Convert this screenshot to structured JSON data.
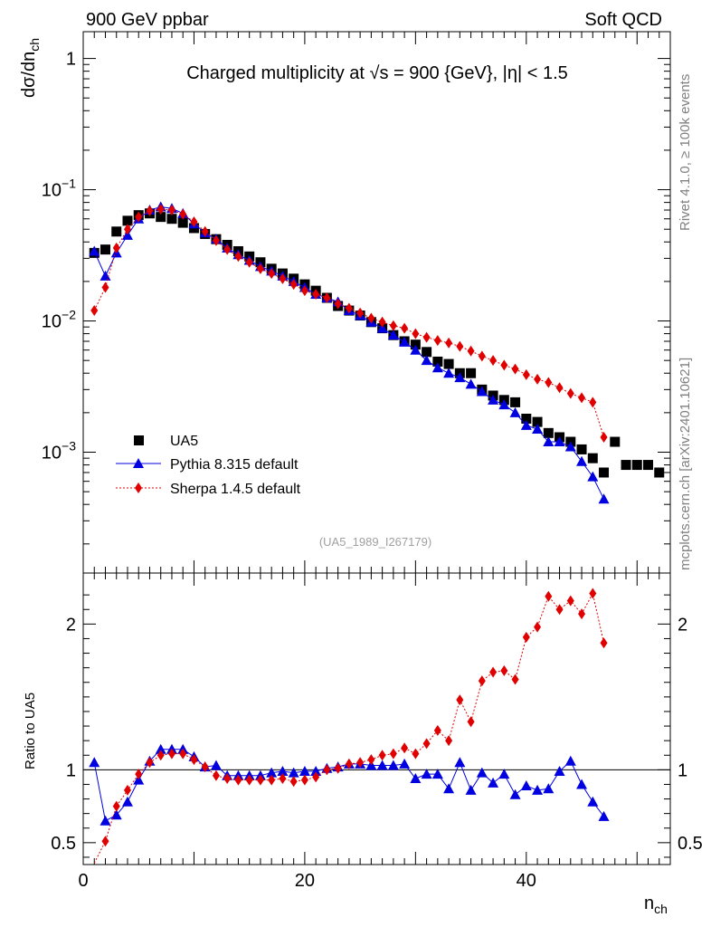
{
  "header": {
    "left": "900 GeV ppbar",
    "right": "Soft QCD"
  },
  "side_labels": {
    "rivet": "Rivet 4.1.0, ≥ 100k events",
    "mcplots": "mcplots.cern.ch [arXiv:2401.10621]"
  },
  "chart_data": [
    {
      "type": "scatter",
      "title": "Charged multiplicity at √s = 900 {GeV}, |η| < 1.5",
      "ylabel": "dσ/dn_ch",
      "yscale": "log",
      "xlim": [
        0,
        53
      ],
      "ylim": [
        0.00012,
        1.6
      ],
      "yticks": [
        {
          "value": 1,
          "label": "1"
        },
        {
          "value": 0.1,
          "label": "10^-1"
        },
        {
          "value": 0.01,
          "label": "10^-2"
        },
        {
          "value": 0.001,
          "label": "10^-3"
        }
      ],
      "reference_label": "(UA5_1989_I267179)",
      "legend_position": "bottom-left",
      "series": [
        {
          "name": "UA5",
          "color": "#000000",
          "marker": "square",
          "x": [
            1,
            2,
            3,
            4,
            5,
            6,
            7,
            8,
            9,
            10,
            11,
            12,
            13,
            14,
            15,
            16,
            17,
            18,
            19,
            20,
            21,
            22,
            23,
            24,
            25,
            26,
            27,
            28,
            29,
            30,
            31,
            32,
            33,
            34,
            35,
            36,
            37,
            38,
            39,
            40,
            41,
            42,
            43,
            44,
            45,
            46,
            47,
            48,
            49,
            50,
            51,
            52
          ],
          "values": [
            0.033,
            0.035,
            0.048,
            0.058,
            0.064,
            0.066,
            0.062,
            0.06,
            0.056,
            0.051,
            0.046,
            0.042,
            0.038,
            0.034,
            0.031,
            0.028,
            0.025,
            0.023,
            0.021,
            0.019,
            0.017,
            0.015,
            0.013,
            0.012,
            0.011,
            0.0098,
            0.0088,
            0.0078,
            0.007,
            0.0066,
            0.0058,
            0.0049,
            0.0047,
            0.004,
            0.004,
            0.003,
            0.0027,
            0.0025,
            0.0024,
            0.0018,
            0.0017,
            0.0014,
            0.0013,
            0.0012,
            0.00105,
            0.0009,
            0.0007,
            0.0012,
            0.0008,
            0.0008,
            0.0008,
            0.0007
          ]
        },
        {
          "name": "Pythia 8.315 default",
          "color": "#0000e0",
          "marker": "triangle",
          "x": [
            1,
            2,
            3,
            4,
            5,
            6,
            7,
            8,
            9,
            10,
            11,
            12,
            13,
            14,
            15,
            16,
            17,
            18,
            19,
            20,
            21,
            22,
            23,
            24,
            25,
            26,
            27,
            28,
            29,
            30,
            31,
            32,
            33,
            34,
            35,
            36,
            37,
            38,
            39,
            40,
            41,
            42,
            43,
            44,
            45,
            46,
            47
          ],
          "values": [
            0.034,
            0.022,
            0.033,
            0.045,
            0.06,
            0.07,
            0.074,
            0.072,
            0.066,
            0.055,
            0.047,
            0.042,
            0.036,
            0.032,
            0.029,
            0.026,
            0.024,
            0.022,
            0.02,
            0.018,
            0.016,
            0.015,
            0.014,
            0.012,
            0.011,
            0.0098,
            0.0088,
            0.0078,
            0.0069,
            0.006,
            0.005,
            0.0044,
            0.004,
            0.0037,
            0.0033,
            0.0029,
            0.0025,
            0.0023,
            0.002,
            0.0016,
            0.0015,
            0.0012,
            0.0012,
            0.0011,
            0.00085,
            0.00065,
            0.00044
          ]
        },
        {
          "name": "Sherpa 1.4.5 default",
          "color": "#e00000",
          "marker": "diamond",
          "x": [
            1,
            2,
            3,
            4,
            5,
            6,
            7,
            8,
            9,
            10,
            11,
            12,
            13,
            14,
            15,
            16,
            17,
            18,
            19,
            20,
            21,
            22,
            23,
            24,
            25,
            26,
            27,
            28,
            29,
            30,
            31,
            32,
            33,
            34,
            35,
            36,
            37,
            38,
            39,
            40,
            41,
            42,
            43,
            44,
            45,
            46,
            47
          ],
          "values": [
            0.012,
            0.018,
            0.036,
            0.05,
            0.062,
            0.069,
            0.071,
            0.07,
            0.065,
            0.057,
            0.048,
            0.041,
            0.035,
            0.031,
            0.028,
            0.025,
            0.023,
            0.021,
            0.019,
            0.017,
            0.016,
            0.015,
            0.0135,
            0.0125,
            0.0115,
            0.0105,
            0.0098,
            0.0092,
            0.0088,
            0.008,
            0.0075,
            0.0071,
            0.0068,
            0.0064,
            0.0059,
            0.0054,
            0.005,
            0.0046,
            0.0043,
            0.0039,
            0.0036,
            0.0034,
            0.0031,
            0.0028,
            0.0026,
            0.0024,
            0.0013
          ]
        }
      ]
    },
    {
      "type": "scatter",
      "ylabel": "Ratio to UA5",
      "xlabel": "n_ch",
      "xlim": [
        0,
        53
      ],
      "ylim": [
        0.35,
        2.35
      ],
      "xticks": [
        0,
        20,
        40
      ],
      "yticks": [
        {
          "value": 0.5,
          "label": "0.5"
        },
        {
          "value": 1,
          "label": "1"
        },
        {
          "value": 2,
          "label": "2"
        }
      ],
      "reference_line": 1,
      "series": [
        {
          "name": "Pythia 8.315 default",
          "color": "#0000e0",
          "marker": "triangle",
          "x": [
            1,
            2,
            3,
            4,
            5,
            6,
            7,
            8,
            9,
            10,
            11,
            12,
            13,
            14,
            15,
            16,
            17,
            18,
            19,
            20,
            21,
            22,
            23,
            24,
            25,
            26,
            27,
            28,
            29,
            30,
            31,
            32,
            33,
            34,
            35,
            36,
            37,
            38,
            39,
            40,
            41,
            42,
            43,
            44,
            45,
            46,
            47
          ],
          "values": [
            1.05,
            0.65,
            0.69,
            0.78,
            0.93,
            1.06,
            1.14,
            1.14,
            1.14,
            1.09,
            1.02,
            1.03,
            0.96,
            0.96,
            0.96,
            0.96,
            0.98,
            0.99,
            0.98,
            0.99,
            0.99,
            1.01,
            1.02,
            1.04,
            1.04,
            1.03,
            1.03,
            1.03,
            1.04,
            0.94,
            0.97,
            0.97,
            0.87,
            1.05,
            0.86,
            0.98,
            0.91,
            0.97,
            0.83,
            0.89,
            0.86,
            0.87,
            0.99,
            1.06,
            0.9,
            0.78,
            0.68
          ]
        },
        {
          "name": "Sherpa 1.4.5 default",
          "color": "#e00000",
          "marker": "diamond",
          "x": [
            1,
            2,
            3,
            4,
            5,
            6,
            7,
            8,
            9,
            10,
            11,
            12,
            13,
            14,
            15,
            16,
            17,
            18,
            19,
            20,
            21,
            22,
            23,
            24,
            25,
            26,
            27,
            28,
            29,
            30,
            31,
            32,
            33,
            34,
            35,
            36,
            37,
            38,
            39,
            40,
            41,
            42,
            43,
            44,
            45,
            46,
            47
          ],
          "values": [
            0.36,
            0.51,
            0.75,
            0.86,
            0.97,
            1.05,
            1.1,
            1.11,
            1.11,
            1.07,
            1.02,
            0.96,
            0.94,
            0.93,
            0.93,
            0.93,
            0.93,
            0.94,
            0.92,
            0.93,
            0.95,
            1.0,
            1.01,
            1.04,
            1.05,
            1.07,
            1.1,
            1.11,
            1.15,
            1.11,
            1.18,
            1.27,
            1.2,
            1.48,
            1.33,
            1.61,
            1.67,
            1.68,
            1.62,
            1.91,
            1.98,
            2.19,
            2.1,
            2.16,
            2.07,
            2.21,
            1.87
          ]
        }
      ]
    }
  ]
}
